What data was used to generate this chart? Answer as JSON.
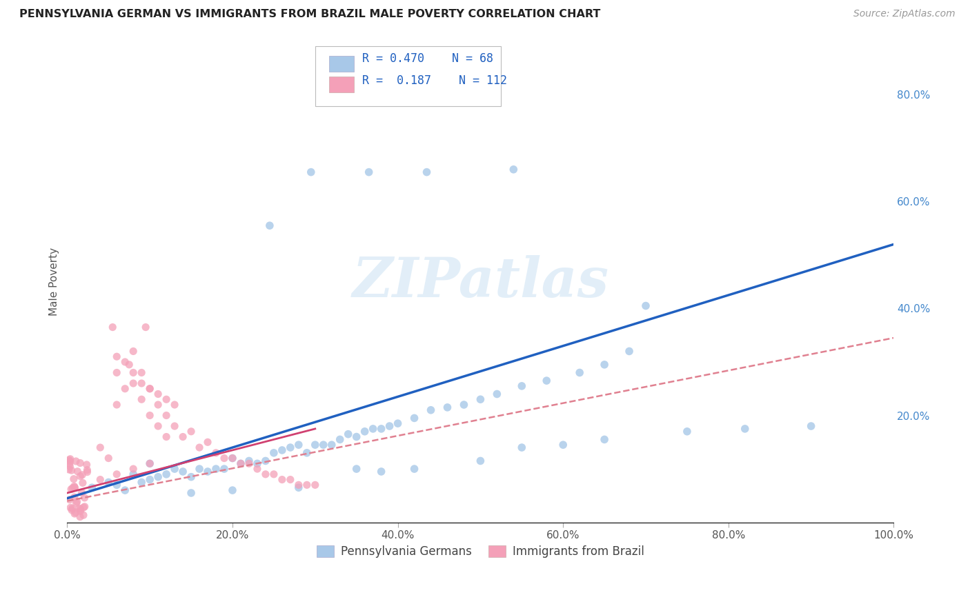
{
  "title": "PENNSYLVANIA GERMAN VS IMMIGRANTS FROM BRAZIL MALE POVERTY CORRELATION CHART",
  "source": "Source: ZipAtlas.com",
  "ylabel": "Male Poverty",
  "xlim": [
    0.0,
    1.0
  ],
  "ylim": [
    0.0,
    0.9
  ],
  "xtick_labels": [
    "0.0%",
    "20.0%",
    "40.0%",
    "60.0%",
    "80.0%",
    "100.0%"
  ],
  "xtick_vals": [
    0.0,
    0.2,
    0.4,
    0.6,
    0.8,
    1.0
  ],
  "right_ytick_labels": [
    "20.0%",
    "40.0%",
    "60.0%",
    "80.0%"
  ],
  "right_ytick_vals": [
    0.2,
    0.4,
    0.6,
    0.8
  ],
  "blue_color": "#a8c8e8",
  "pink_color": "#f4a0b8",
  "blue_line_color": "#2060c0",
  "pink_line_color": "#d04070",
  "pink_line_dashed_color": "#e08090",
  "watermark": "ZIPatlas",
  "blue_R": 0.47,
  "blue_N": 68,
  "pink_R": 0.187,
  "pink_N": 112,
  "blue_line_x0": 0.0,
  "blue_line_y0": 0.045,
  "blue_line_x1": 1.0,
  "blue_line_y1": 0.52,
  "pink_line_x0": 0.0,
  "pink_line_y0": 0.04,
  "pink_line_x1": 1.0,
  "pink_line_y1": 0.345
}
